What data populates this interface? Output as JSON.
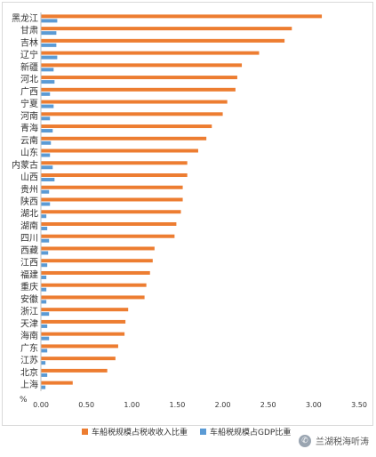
{
  "chart_data": {
    "type": "bar",
    "orientation": "horizontal",
    "unit": "%",
    "categories": [
      "黑龙江",
      "甘肃",
      "吉林",
      "辽宁",
      "新疆",
      "河北",
      "广西",
      "宁夏",
      "河南",
      "青海",
      "云南",
      "山东",
      "内蒙古",
      "山西",
      "贵州",
      "陕西",
      "湖北",
      "湖南",
      "四川",
      "西藏",
      "江西",
      "福建",
      "重庆",
      "安徽",
      "浙江",
      "天津",
      "海南",
      "广东",
      "江苏",
      "北京",
      "上海"
    ],
    "series": [
      {
        "name": "车船税规模占税收收入比重",
        "color": "#ED7D31",
        "values": [
          3.09,
          2.76,
          2.68,
          2.4,
          2.21,
          2.16,
          2.14,
          2.05,
          2.0,
          1.88,
          1.82,
          1.73,
          1.61,
          1.61,
          1.56,
          1.56,
          1.54,
          1.49,
          1.47,
          1.25,
          1.23,
          1.2,
          1.16,
          1.14,
          0.96,
          0.93,
          0.92,
          0.85,
          0.82,
          0.73,
          0.35
        ]
      },
      {
        "name": "车船税规模占GDP比重",
        "color": "#5B9BD5",
        "values": [
          0.18,
          0.17,
          0.17,
          0.18,
          0.14,
          0.15,
          0.1,
          0.14,
          0.1,
          0.13,
          0.11,
          0.1,
          0.13,
          0.15,
          0.09,
          0.1,
          0.06,
          0.07,
          0.09,
          0.08,
          0.07,
          0.06,
          0.06,
          0.06,
          0.09,
          0.07,
          0.09,
          0.07,
          0.05,
          0.07,
          0.05
        ]
      }
    ],
    "xlim": [
      0,
      3.5
    ],
    "xticks": [
      "0.00",
      "0.50",
      "1.00",
      "1.50",
      "2.00",
      "2.50",
      "3.00",
      "3.50"
    ],
    "grid": false,
    "legend_position": "bottom"
  },
  "watermark": {
    "text": "兰湖税海听涛",
    "icon": "wechat-icon"
  }
}
